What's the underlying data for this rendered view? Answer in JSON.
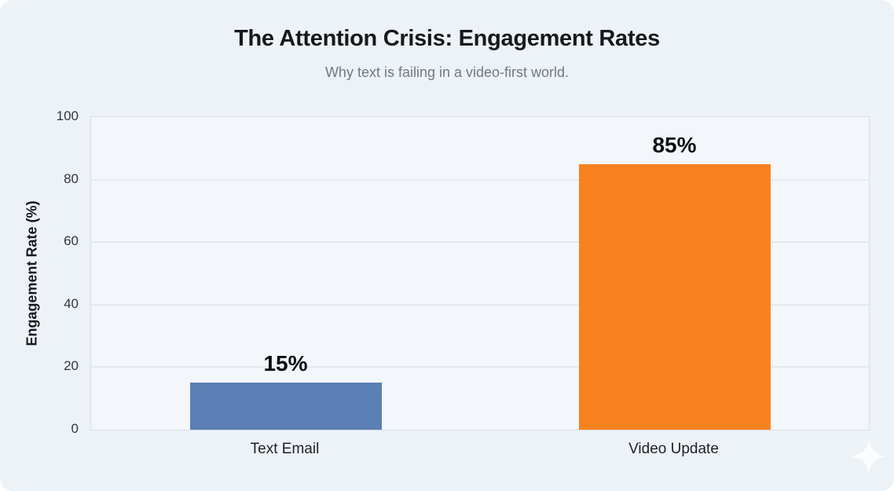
{
  "page": {
    "background": "#ffffff",
    "card_background": "#edf2f7"
  },
  "text_colors": {
    "title": "#16181c",
    "subtitle": "#71787f",
    "tick_label": "#31363c",
    "category_label": "#1d2126",
    "value_label": "#0c0e11",
    "axis_title": "#16181c"
  },
  "chart_data": {
    "type": "bar",
    "title": "The Attention Crisis: Engagement Rates",
    "subtitle": "Why text is failing in a video-first world.",
    "ylabel": "Engagement Rate (%)",
    "xlabel": "",
    "ylim": [
      0,
      100
    ],
    "y_ticks": [
      0,
      20,
      40,
      60,
      80,
      100
    ],
    "grid": true,
    "legend": false,
    "categories": [
      "Text Email",
      "Video Update"
    ],
    "values": [
      15,
      85
    ],
    "bar_labels": [
      "15%",
      "85%"
    ],
    "bar_colors": [
      "#5b80b5",
      "#f8821f"
    ],
    "plot_background": "#f3f6fa",
    "plot_border_color": "#d9e0e8",
    "grid_color": "#e4eaf1"
  },
  "watermark": {
    "icon": "sparkle",
    "color": "#ffffff"
  }
}
